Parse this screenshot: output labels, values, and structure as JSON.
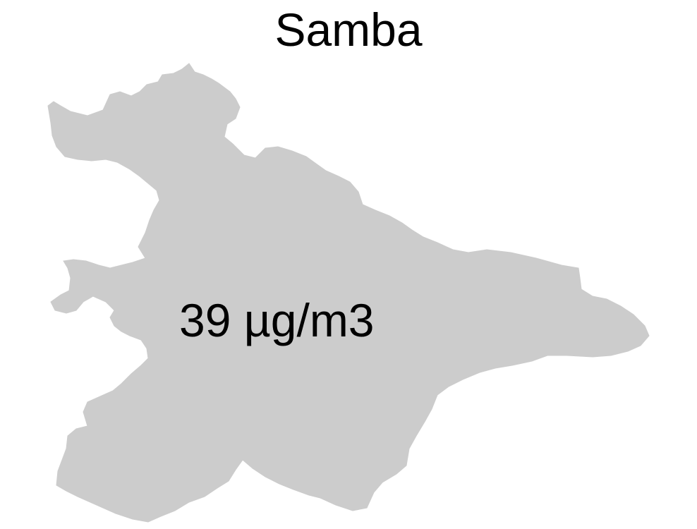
{
  "map": {
    "title": "Samba",
    "region_label": "39 µg/m3",
    "region_fill": "#cccccc",
    "background": "#ffffff"
  }
}
